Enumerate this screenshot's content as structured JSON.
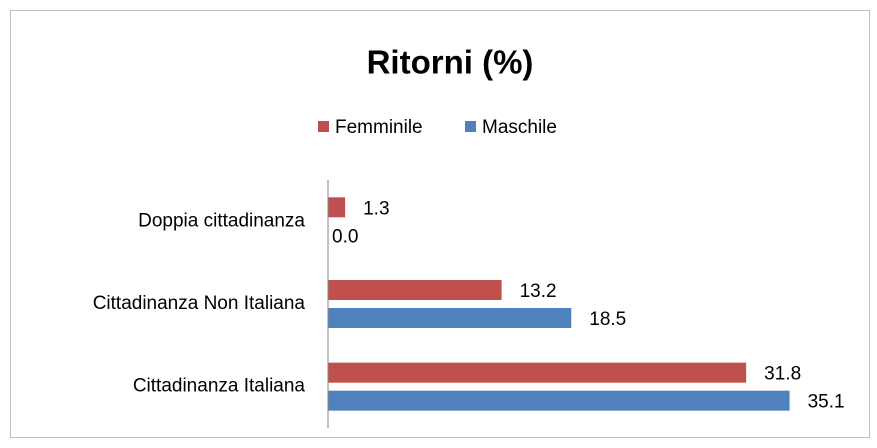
{
  "chart_data": {
    "type": "hbar",
    "title": "Ritorni (%)",
    "categories": [
      "Doppia cittadinanza",
      "Cittadinanza Non Italiana",
      "Cittadinanza Italiana"
    ],
    "series": [
      {
        "name": "Femminile",
        "color": "#c0504d",
        "values": [
          1.3,
          13.2,
          31.8
        ],
        "value_labels": [
          "1.3",
          "13.2",
          "31.8"
        ]
      },
      {
        "name": "Maschile",
        "color": "#4f81bd",
        "values": [
          0,
          18.5,
          35.1
        ],
        "value_labels": [
          "0.0",
          "18.5",
          "35.1"
        ]
      }
    ],
    "xlim": [
      0,
      40
    ],
    "legend": "top"
  }
}
